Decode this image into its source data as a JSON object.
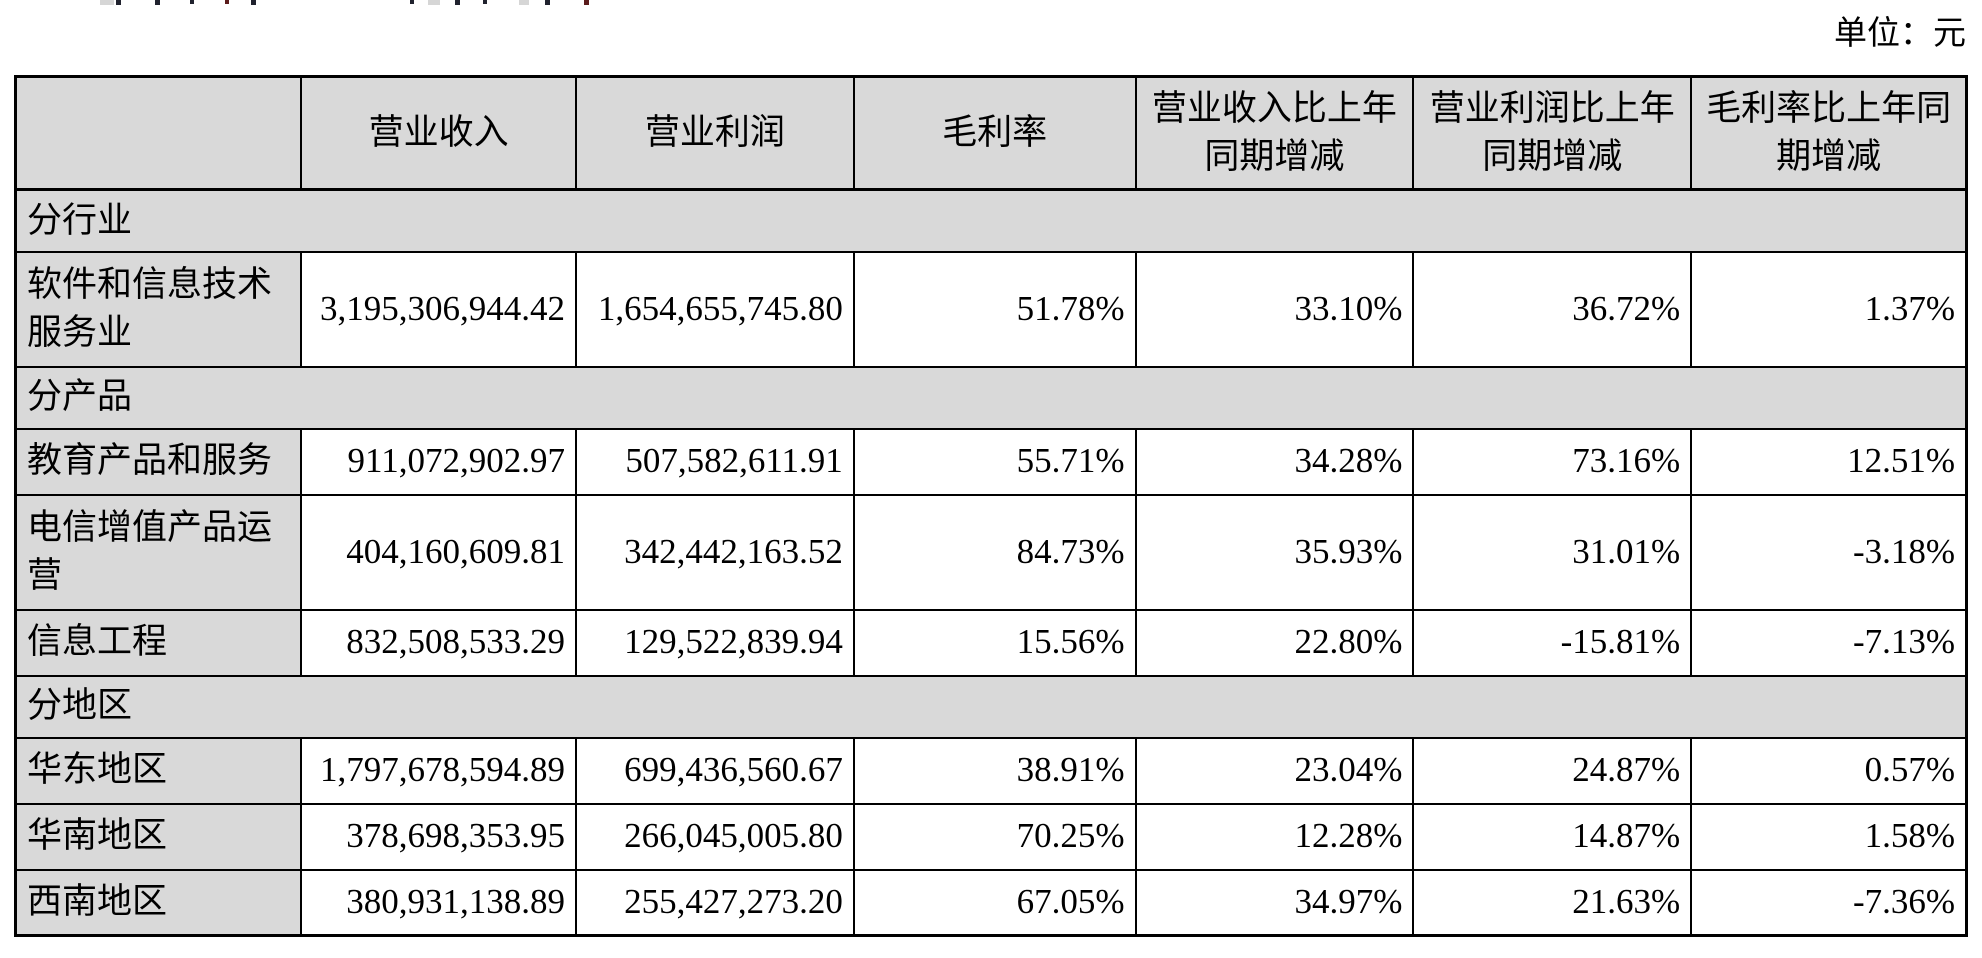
{
  "page": {
    "unit_label": "单位：元"
  },
  "colors": {
    "cell_gray": "#d9d9d9",
    "grid_border": "#000000",
    "text": "#000000"
  },
  "table": {
    "columns": [
      "",
      "营业收入",
      "营业利润",
      "毛利率",
      "营业收入比上年同期增减",
      "营业利润比上年同期增减",
      "毛利率比上年同期增减"
    ],
    "sections": [
      {
        "label": "分行业",
        "rows": [
          {
            "name": "软件和信息技术服务业",
            "revenue": "3,195,306,944.42",
            "profit": "1,654,655,745.80",
            "margin": "51.78%",
            "revenue_yoy": "33.10%",
            "profit_yoy": "36.72%",
            "margin_yoy": "1.37%"
          }
        ]
      },
      {
        "label": "分产品",
        "rows": [
          {
            "name": "教育产品和服务",
            "revenue": "911,072,902.97",
            "profit": "507,582,611.91",
            "margin": "55.71%",
            "revenue_yoy": "34.28%",
            "profit_yoy": "73.16%",
            "margin_yoy": "12.51%"
          },
          {
            "name": "电信增值产品运营",
            "revenue": "404,160,609.81",
            "profit": "342,442,163.52",
            "margin": "84.73%",
            "revenue_yoy": "35.93%",
            "profit_yoy": "31.01%",
            "margin_yoy": "-3.18%"
          },
          {
            "name": "信息工程",
            "revenue": "832,508,533.29",
            "profit": "129,522,839.94",
            "margin": "15.56%",
            "revenue_yoy": "22.80%",
            "profit_yoy": "-15.81%",
            "margin_yoy": "-7.13%"
          }
        ]
      },
      {
        "label": "分地区",
        "rows": [
          {
            "name": "华东地区",
            "revenue": "1,797,678,594.89",
            "profit": "699,436,560.67",
            "margin": "38.91%",
            "revenue_yoy": "23.04%",
            "profit_yoy": "24.87%",
            "margin_yoy": "0.57%"
          },
          {
            "name": "华南地区",
            "revenue": "378,698,353.95",
            "profit": "266,045,005.80",
            "margin": "70.25%",
            "revenue_yoy": "12.28%",
            "profit_yoy": "14.87%",
            "margin_yoy": "1.58%"
          },
          {
            "name": "西南地区",
            "revenue": "380,931,138.89",
            "profit": "255,427,273.20",
            "margin": "67.05%",
            "revenue_yoy": "34.97%",
            "profit_yoy": "21.63%",
            "margin_yoy": "-7.36%"
          }
        ]
      }
    ]
  }
}
